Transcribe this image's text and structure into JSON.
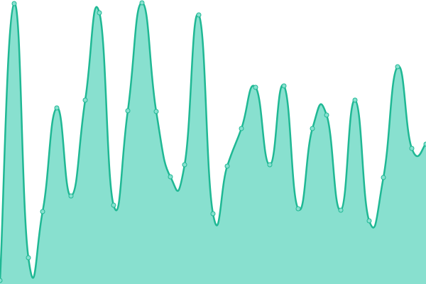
{
  "chart_data": {
    "type": "area",
    "categories": [
      null,
      null,
      null,
      null,
      null,
      null,
      null,
      null,
      null,
      null,
      null,
      null,
      null,
      null,
      null,
      null,
      null,
      null,
      null,
      null,
      null,
      null,
      null,
      null,
      null,
      null,
      null,
      null,
      null,
      null,
      null
    ],
    "series": [
      {
        "color": "#1fb894",
        "fill": "#88e0cf",
        "values": [
          5,
          395,
          37,
          102,
          248,
          124,
          259,
          382,
          111,
          244,
          396,
          243,
          151,
          168,
          379,
          99,
          166,
          219,
          277,
          168,
          279,
          106,
          219,
          238,
          104,
          259,
          89,
          150,
          306,
          191,
          197
        ]
      }
    ],
    "ylim": [
      0,
      400
    ],
    "markers": true
  }
}
